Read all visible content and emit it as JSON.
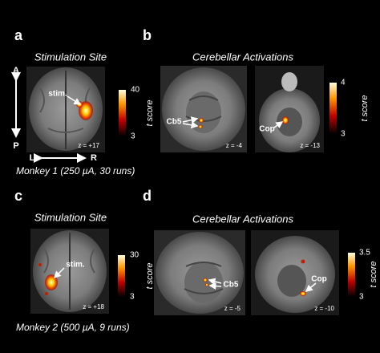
{
  "panels": [
    {
      "label": "a",
      "title": "Stimulation Site",
      "orientation": {
        "anterior": "A",
        "posterior": "P",
        "left": "L",
        "right": "R"
      },
      "images": [
        {
          "annotations": [
            "stim."
          ],
          "slice": "z = +17"
        }
      ],
      "colorbar": {
        "max": 40,
        "min": 3,
        "label": "t score"
      },
      "caption": "Monkey 1 (250 µA, 30 runs)"
    },
    {
      "label": "b",
      "title": "Cerebellar Activations",
      "images": [
        {
          "annotations": [
            "Cb5"
          ],
          "slice": "z = -4"
        },
        {
          "annotations": [
            "Cop"
          ],
          "slice": "z = -13"
        }
      ],
      "colorbar": {
        "max": 4,
        "min": 3,
        "label": "t score"
      }
    },
    {
      "label": "c",
      "title": "Stimulation Site",
      "images": [
        {
          "annotations": [
            "stim."
          ],
          "slice": "z = +18"
        }
      ],
      "colorbar": {
        "max": 30,
        "min": 3,
        "label": "t score"
      },
      "caption": "Monkey 2 (500 µA, 9 runs)"
    },
    {
      "label": "d",
      "title": "Cerebellar Activations",
      "images": [
        {
          "annotations": [
            "Cb5"
          ],
          "slice": "z = -5"
        },
        {
          "annotations": [
            "Cop"
          ],
          "slice": "z = -10"
        }
      ],
      "colorbar": {
        "max": 3.5,
        "min": 3,
        "label": "t score"
      }
    }
  ]
}
